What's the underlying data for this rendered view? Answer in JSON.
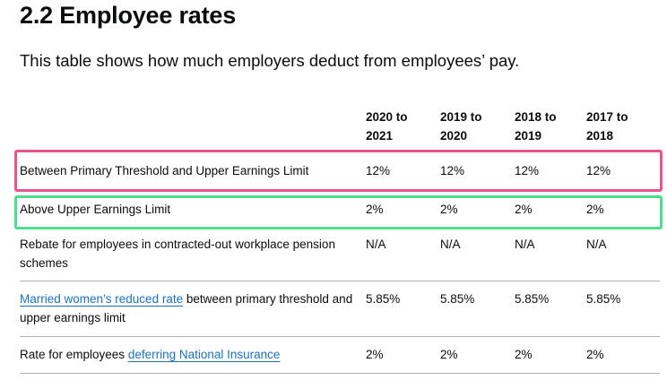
{
  "heading": "2.2 Employee rates",
  "lead": "This table shows how much employers deduct from employees’ pay.",
  "table": {
    "headers": [
      "",
      "2020 to 2021",
      "2019 to 2020",
      "2018 to 2019",
      "2017 to 2018"
    ],
    "rows": [
      {
        "label": "Between Primary Threshold and Upper Earnings Limit",
        "values": [
          "12%",
          "12%",
          "12%",
          "12%"
        ]
      },
      {
        "label": "Above Upper Earnings Limit",
        "values": [
          "2%",
          "2%",
          "2%",
          "2%"
        ]
      },
      {
        "label": "Rebate for employees in contracted-out workplace pension schemes",
        "values": [
          "N/A",
          "N/A",
          "N/A",
          "N/A"
        ]
      },
      {
        "link": "Married women’s reduced rate",
        "label": " between primary threshold and upper earnings limit",
        "values": [
          "5.85%",
          "5.85%",
          "5.85%",
          "5.85%"
        ]
      },
      {
        "label": "Rate for employees ",
        "link": "deferring National Insurance",
        "values": [
          "2%",
          "2%",
          "2%",
          "2%"
        ]
      }
    ]
  },
  "highlights": {
    "pink": "#e8548e",
    "green": "#4cde8c"
  },
  "link_color": "#1d70b8"
}
